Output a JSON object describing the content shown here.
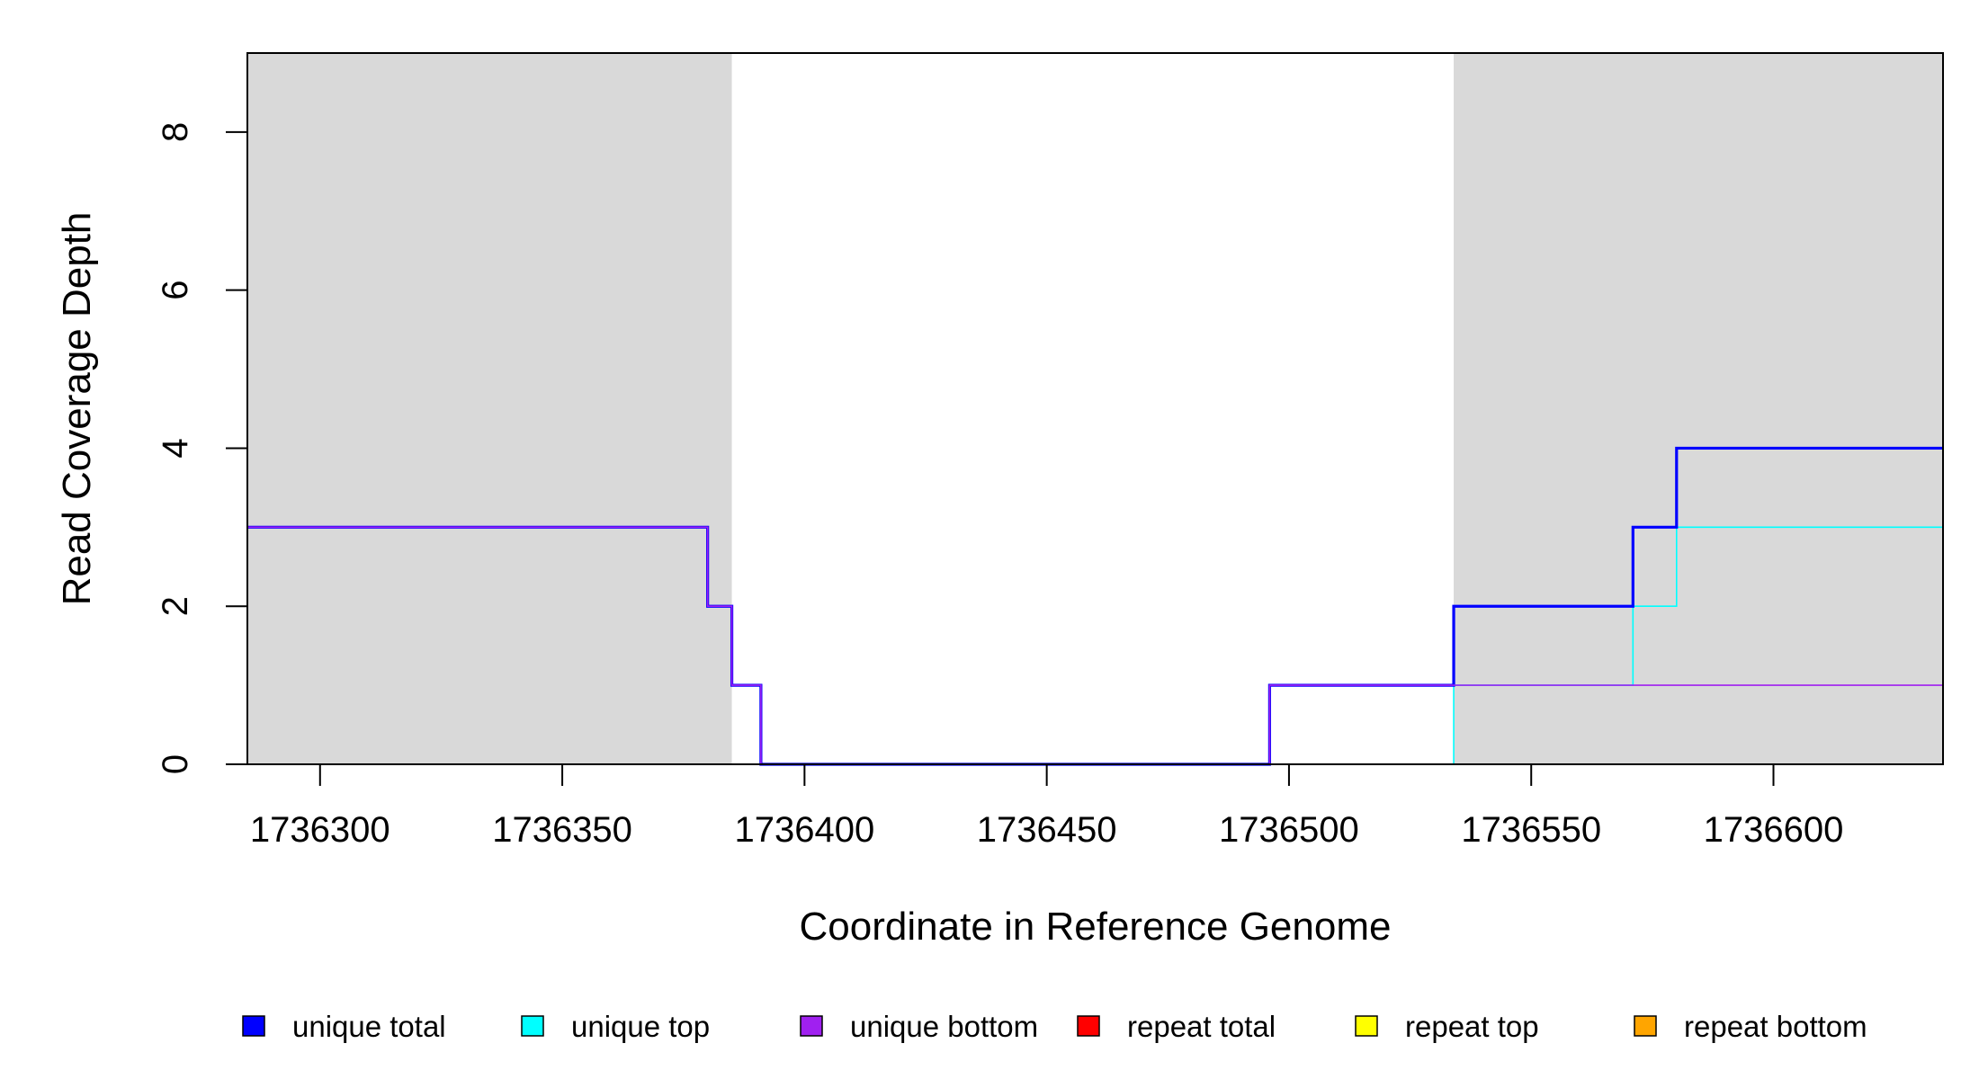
{
  "chart_data": {
    "type": "line",
    "title": "",
    "xlabel": "Coordinate in Reference Genome",
    "ylabel": "Read Coverage Depth",
    "xlim": [
      1736285,
      1736635
    ],
    "ylim": [
      0,
      9
    ],
    "x_ticks": [
      1736300,
      1736350,
      1736400,
      1736450,
      1736500,
      1736550,
      1736600
    ],
    "y_ticks": [
      0,
      2,
      4,
      6,
      8
    ],
    "grid": false,
    "background_color": "#d9d9d9",
    "shaded_regions": [
      {
        "x": [
          1736285,
          1736385
        ]
      },
      {
        "x": [
          1736534,
          1736635
        ]
      }
    ],
    "series": [
      {
        "name": "unique total",
        "color": "#0000ff",
        "line_width": 3.2,
        "step": true,
        "x": [
          1736285,
          1736380,
          1736385,
          1736391,
          1736496,
          1736534,
          1736571,
          1736580,
          1736635
        ],
        "y": [
          3,
          2,
          1,
          0,
          1,
          2,
          3,
          4,
          4
        ]
      },
      {
        "name": "unique top",
        "color": "#00ffff",
        "line_width": 1.6,
        "step": true,
        "x": [
          1736285,
          1736380,
          1736385,
          1736391,
          1736534,
          1736571,
          1736580,
          1736635
        ],
        "y": [
          0,
          0,
          0,
          0,
          1,
          2,
          3,
          3
        ]
      },
      {
        "name": "unique bottom",
        "color": "#a020f0",
        "line_width": 1.6,
        "step": true,
        "x": [
          1736285,
          1736380,
          1736385,
          1736391,
          1736496,
          1736534,
          1736635
        ],
        "y": [
          3,
          2,
          1,
          0,
          1,
          1,
          1
        ]
      },
      {
        "name": "repeat total",
        "color": "#ff0000",
        "line_width": 1.6,
        "step": true,
        "x": [
          1736285,
          1736635
        ],
        "y": [
          0,
          0
        ]
      },
      {
        "name": "repeat top",
        "color": "#ffff00",
        "line_width": 1.6,
        "step": true,
        "x": [
          1736285,
          1736635
        ],
        "y": [
          0,
          0
        ]
      },
      {
        "name": "repeat bottom",
        "color": "#ffa500",
        "line_width": 1.6,
        "step": true,
        "x": [
          1736285,
          1736635
        ],
        "y": [
          0,
          0
        ]
      }
    ],
    "legend": {
      "placement": "bottom"
    }
  }
}
